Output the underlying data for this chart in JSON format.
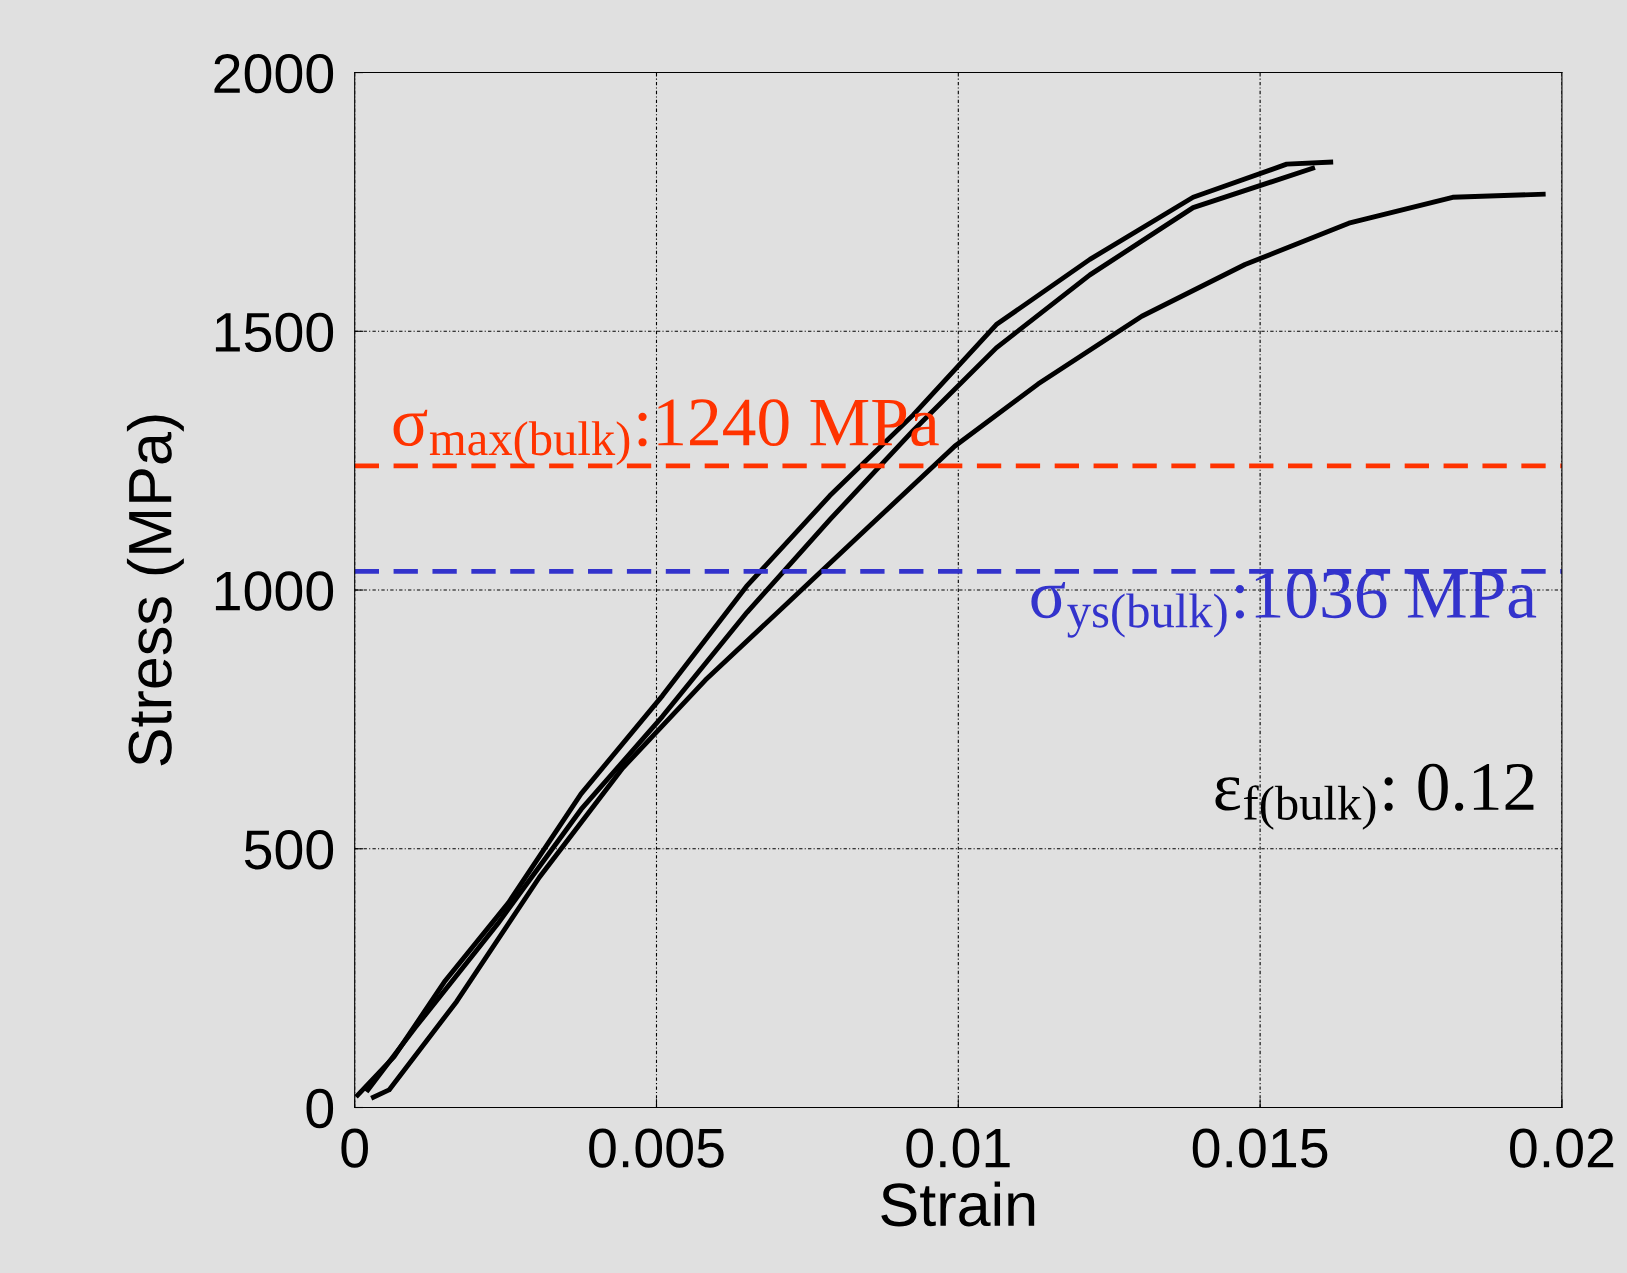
{
  "chart_data": {
    "type": "line",
    "xlabel": "Strain",
    "ylabel": "Stress (MPa)",
    "xlim": [
      0,
      0.02
    ],
    "ylim": [
      0,
      2000
    ],
    "xticks": [
      0,
      0.005,
      0.01,
      0.015,
      0.02
    ],
    "yticks": [
      0,
      500,
      1000,
      1500,
      2000
    ],
    "grid": true,
    "marker": "none",
    "line_style": "solid",
    "series": [
      {
        "color": "#000000",
        "x": [
          5e-05,
          0.00065,
          0.0015,
          0.00255,
          0.00375,
          0.0051,
          0.00649,
          0.00787,
          0.00925,
          0.01063,
          0.01218,
          0.01389,
          0.01544,
          0.01617
        ],
        "values": [
          24,
          98,
          245,
          396,
          606,
          796,
          1007,
          1182,
          1338,
          1513,
          1639,
          1759,
          1823,
          1827
        ]
      },
      {
        "color": "#000000",
        "x": [
          0.00022,
          0.001,
          0.00237,
          0.00375,
          0.0051,
          0.0065,
          0.00788,
          0.00925,
          0.01063,
          0.01218,
          0.01389,
          0.01587
        ],
        "values": [
          34,
          154,
          355,
          576,
          756,
          957,
          1137,
          1308,
          1468,
          1609,
          1739,
          1815
        ]
      },
      {
        "color": "#000000",
        "x": [
          0.00031,
          0.00057,
          0.00169,
          0.00306,
          0.00444,
          0.00581,
          0.00719,
          0.00856,
          0.00994,
          0.01132,
          0.01304,
          0.01475,
          0.01647,
          0.01819,
          0.01969
        ],
        "values": [
          20,
          34,
          205,
          445,
          656,
          826,
          977,
          1127,
          1278,
          1398,
          1529,
          1629,
          1709,
          1759,
          1765
        ]
      }
    ],
    "ref_lines": [
      {
        "axis": "y",
        "value": 1240,
        "label": "σ$_{max(bulk)}$:1240 MPa",
        "color": "#ff3300",
        "line_style": "dashed"
      },
      {
        "axis": "y",
        "value": 1036,
        "label": "σ$_{ys(bulk)}$:1036 MPa",
        "color": "#3333cc",
        "line_style": "dashed"
      }
    ],
    "annotations": [
      "ε$_{f(bulk)}$: 0.12"
    ]
  }
}
